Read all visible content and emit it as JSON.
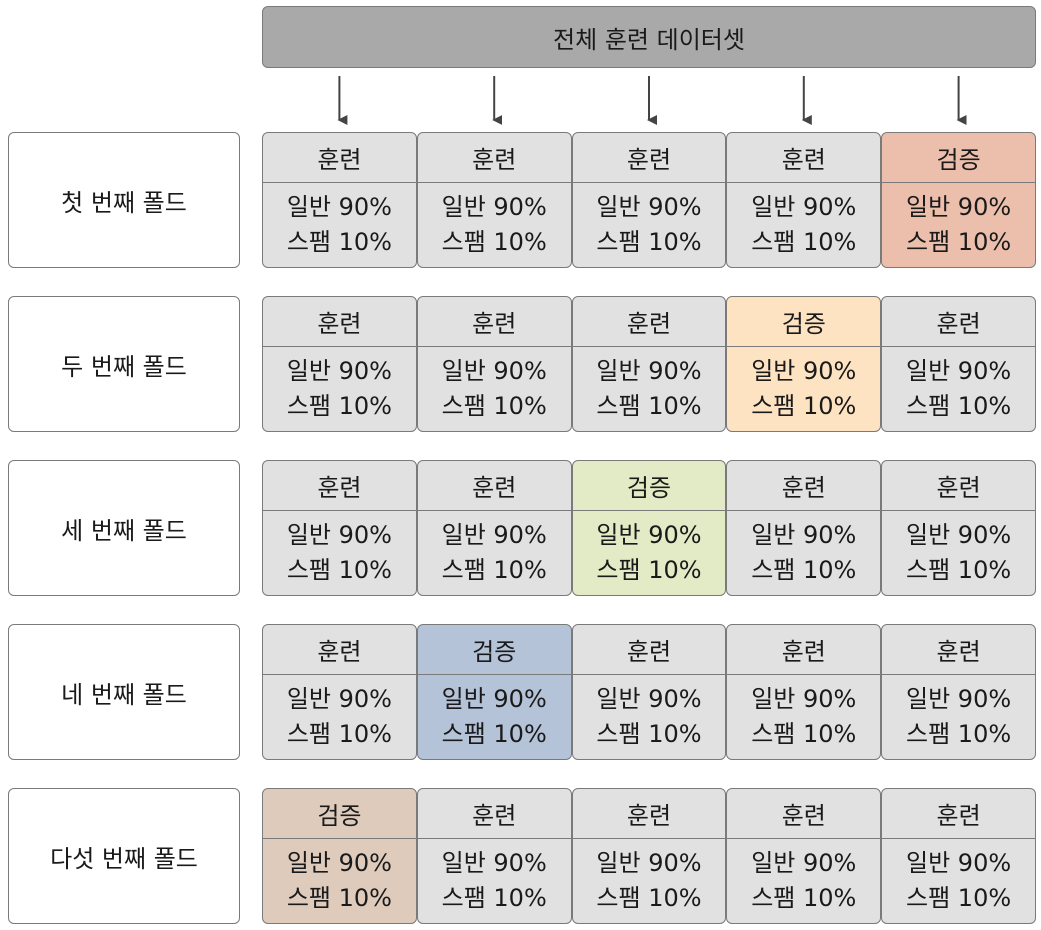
{
  "header": {
    "title": "전체 훈련 데이터셋"
  },
  "colors": {
    "train": "#e1e1e1",
    "fold_1": "#ecbfad",
    "fold_2": "#fde3c2",
    "fold_3": "#e2ebc5",
    "fold_4": "#b5c3d8",
    "fold_5": "#dfcbbc"
  },
  "cell_text": {
    "train": "훈련",
    "validation": "검증",
    "normal": "일반 90%",
    "spam": "스팸 10%"
  },
  "folds": [
    {
      "label": "첫 번째 폴드",
      "validation_index": 4,
      "color_key": "fold_1"
    },
    {
      "label": "두 번째 폴드",
      "validation_index": 3,
      "color_key": "fold_2"
    },
    {
      "label": "세 번째 폴드",
      "validation_index": 2,
      "color_key": "fold_3"
    },
    {
      "label": "네 번째 폴드",
      "validation_index": 1,
      "color_key": "fold_4"
    },
    {
      "label": "다섯 번째 폴드",
      "validation_index": 0,
      "color_key": "fold_5"
    }
  ]
}
